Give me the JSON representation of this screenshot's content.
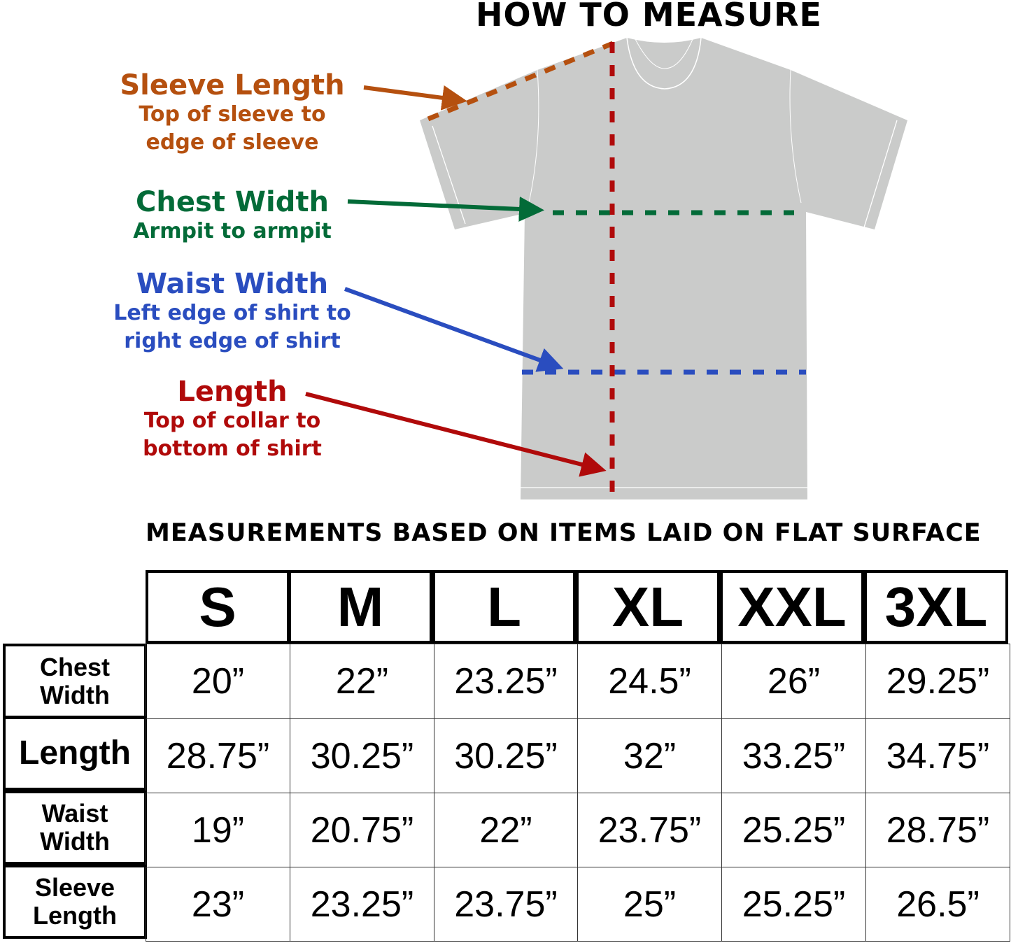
{
  "title": "HOW TO MEASURE",
  "labels": [
    {
      "heading": "Sleeve Length",
      "desc1": "Top of sleeve to",
      "desc2": "edge of sleeve",
      "color": "#b5500f"
    },
    {
      "heading": "Chest Width",
      "desc1": "Armpit to armpit",
      "desc2": "",
      "color": "#036b38"
    },
    {
      "heading": "Waist Width",
      "desc1": "Left edge of shirt to",
      "desc2": "right edge of shirt",
      "color": "#2a4dbf"
    },
    {
      "heading": "Length",
      "desc1": "Top of collar to",
      "desc2": "bottom of shirt",
      "color": "#b00a0a"
    }
  ],
  "subtitle": "MEASUREMENTS BASED ON ITEMS LAID ON FLAT SURFACE",
  "table": {
    "sizes": [
      "S",
      "M",
      "L",
      "XL",
      "XXL",
      "3XL"
    ],
    "rows": [
      {
        "label1": "Chest",
        "label2": "Width",
        "values": [
          "20”",
          "22”",
          "23.25”",
          "24.5”",
          "26”",
          "29.25”"
        ]
      },
      {
        "label1": "Length",
        "label2": "",
        "values": [
          "28.75”",
          "30.25”",
          "30.25”",
          "32”",
          "33.25”",
          "34.75”"
        ]
      },
      {
        "label1": "Waist",
        "label2": "Width",
        "values": [
          "19”",
          "20.75”",
          "22”",
          "23.75”",
          "25.25”",
          "28.75”"
        ]
      },
      {
        "label1": "Sleeve",
        "label2": "Length",
        "values": [
          "23”",
          "23.25”",
          "23.75”",
          "25”",
          "25.25”",
          "26.5”"
        ]
      }
    ]
  },
  "shirt_color": "#cacbca"
}
